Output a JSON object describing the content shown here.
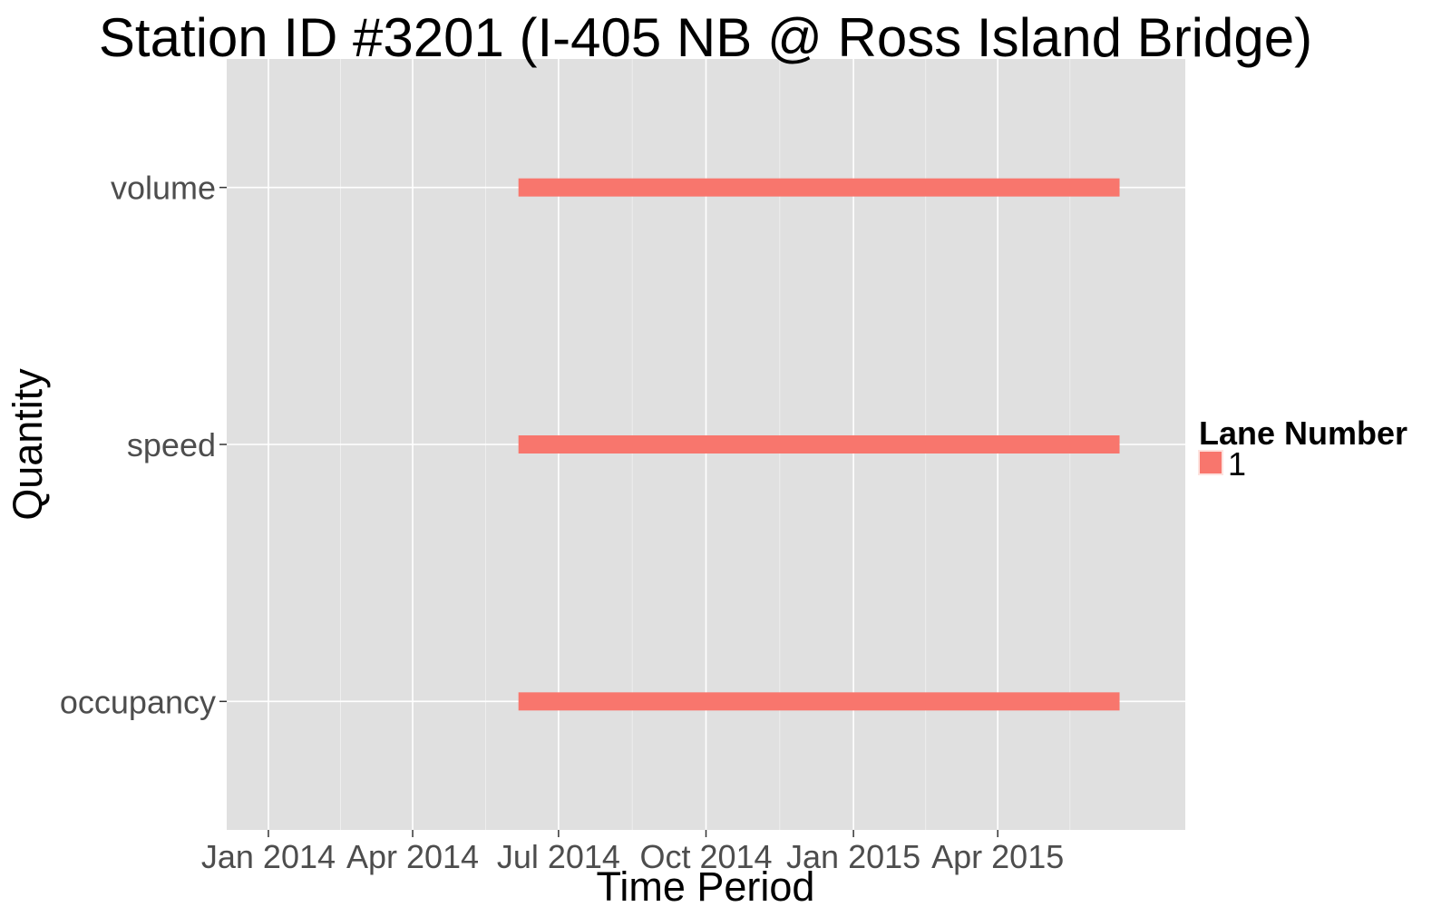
{
  "chart_data": {
    "type": "bar",
    "title": "Station ID #3201 (I-405 NB @ Ross Island Bridge)",
    "xlabel": "Time Period",
    "ylabel": "Quantity",
    "x_axis_type": "date",
    "x_ticks": [
      "2014-01-01",
      "2014-04-01",
      "2014-07-01",
      "2014-10-01",
      "2015-01-01",
      "2015-04-01"
    ],
    "x_tick_labels": [
      "Jan 2014",
      "Apr 2014",
      "Jul 2014",
      "Oct 2014",
      "Jan 2015",
      "Apr 2015"
    ],
    "xlim": [
      "2013-12-06",
      "2015-07-27"
    ],
    "categories": [
      "volume",
      "speed",
      "occupancy"
    ],
    "series": [
      {
        "name": "1",
        "color": "#F8766D",
        "segments": [
          {
            "category": "volume",
            "start": "2014-06-06",
            "end": "2015-06-16"
          },
          {
            "category": "speed",
            "start": "2014-06-06",
            "end": "2015-06-16"
          },
          {
            "category": "occupancy",
            "start": "2014-06-06",
            "end": "2015-06-16"
          }
        ]
      }
    ],
    "legend": {
      "title": "Lane Number",
      "position": "right",
      "entries": [
        {
          "label": "1",
          "color": "#F8766D"
        }
      ]
    },
    "grid": true,
    "panel_background": "#E0E0E0",
    "grid_color": "#FFFFFF"
  }
}
